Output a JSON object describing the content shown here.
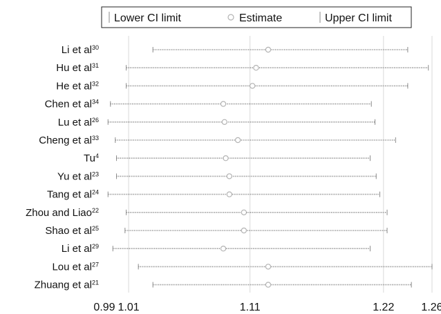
{
  "chart_data": {
    "type": "forest",
    "legend": {
      "position": "top",
      "items": [
        {
          "label": "Lower CI limit",
          "icon": "lower-ci-tick-icon"
        },
        {
          "label": "Estimate",
          "icon": "estimate-circle-icon"
        },
        {
          "label": "Upper CI limit",
          "icon": "upper-ci-tick-icon"
        }
      ]
    },
    "xticks": [
      {
        "value": 0.99,
        "label": "0.99"
      },
      {
        "value": 1.01,
        "label": "1.01"
      },
      {
        "value": 1.11,
        "label": "1.11"
      },
      {
        "value": 1.22,
        "label": "1.22"
      },
      {
        "value": 1.26,
        "label": "1.26"
      }
    ],
    "xlim": [
      0.99,
      1.26
    ],
    "grid": true,
    "studies": [
      {
        "name": "Li et al",
        "ref": "30",
        "lower": 1.03,
        "estimate": 1.125,
        "upper": 1.24
      },
      {
        "name": "Hu et al",
        "ref": "31",
        "lower": 1.008,
        "estimate": 1.115,
        "upper": 1.257
      },
      {
        "name": "He et al",
        "ref": "32",
        "lower": 1.008,
        "estimate": 1.112,
        "upper": 1.24
      },
      {
        "name": "Chen et al",
        "ref": "34",
        "lower": 0.995,
        "estimate": 1.088,
        "upper": 1.21
      },
      {
        "name": "Lu et al",
        "ref": "26",
        "lower": 0.993,
        "estimate": 1.089,
        "upper": 1.213
      },
      {
        "name": "Cheng et al",
        "ref": "33",
        "lower": 0.999,
        "estimate": 1.1,
        "upper": 1.23
      },
      {
        "name": "Tu",
        "ref": "4",
        "lower": 1.0,
        "estimate": 1.09,
        "upper": 1.209
      },
      {
        "name": "Yu et al",
        "ref": "23",
        "lower": 1.0,
        "estimate": 1.093,
        "upper": 1.214
      },
      {
        "name": "Tang et al",
        "ref": "24",
        "lower": 0.993,
        "estimate": 1.093,
        "upper": 1.217
      },
      {
        "name": "Zhou and Liao",
        "ref": "22",
        "lower": 1.008,
        "estimate": 1.105,
        "upper": 1.223
      },
      {
        "name": "Shao et al",
        "ref": "25",
        "lower": 1.007,
        "estimate": 1.105,
        "upper": 1.223
      },
      {
        "name": "Li et al",
        "ref": "29",
        "lower": 0.997,
        "estimate": 1.088,
        "upper": 1.209
      },
      {
        "name": "Lou et al",
        "ref": "27",
        "lower": 1.018,
        "estimate": 1.125,
        "upper": 1.26
      },
      {
        "name": "Zhuang et al",
        "ref": "21",
        "lower": 1.03,
        "estimate": 1.125,
        "upper": 1.243
      }
    ],
    "colors": {
      "ci": "#8a8a8a",
      "estimate": "#b3b3b3",
      "grid": "#d9d9d9"
    }
  }
}
